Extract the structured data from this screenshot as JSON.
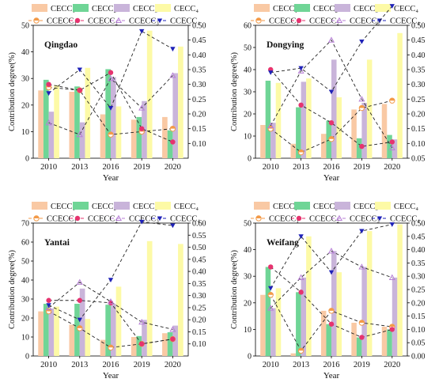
{
  "legend": {
    "bars": [
      "CECC₁",
      "CECC₂",
      "CECC₃",
      "CECC₄"
    ],
    "lines": [
      "CCECC₁",
      "CCECC₂",
      "CCECC₃",
      "CCECC₄"
    ]
  },
  "colors": {
    "bars": [
      "#F9C9A4",
      "#6FD596",
      "#C9B4DA",
      "#FDFAA6"
    ],
    "lines": [
      "#F39A48",
      "#E6336F",
      "#B77FD6",
      "#1F22B8"
    ]
  },
  "chart_data": [
    {
      "type": "bar",
      "title": "Qingdao",
      "categories": [
        "2010",
        "2013",
        "2016",
        "2019",
        "2020"
      ],
      "xlabel": "Year",
      "ylabel": "Contribution degree(%)",
      "ylim": [
        0,
        50
      ],
      "yticks": [
        0,
        10,
        20,
        30,
        40,
        50
      ],
      "y2lim": [
        0.05,
        0.5
      ],
      "y2ticks": [
        0.1,
        0.15,
        0.2,
        0.25,
        0.3,
        0.35,
        0.4,
        0.45,
        0.5
      ],
      "series": [
        {
          "name": "CECC₁",
          "values": [
            25.5,
            25,
            16.5,
            14.5,
            15.5
          ]
        },
        {
          "name": "CECC₂",
          "values": [
            29.5,
            27,
            33.5,
            15.5,
            10.5
          ]
        },
        {
          "name": "CECC₃",
          "values": [
            17.5,
            13.5,
            30.5,
            21.5,
            32
          ]
        },
        {
          "name": "CECC₄",
          "values": [
            27.5,
            34,
            19.5,
            48,
            42
          ]
        }
      ],
      "line_series": [
        {
          "name": "CCECC₁",
          "values": [
            0.29,
            0.28,
            0.13,
            0.14,
            0.15
          ]
        },
        {
          "name": "CCECC₂",
          "values": [
            0.3,
            0.28,
            0.34,
            0.15,
            0.105
          ]
        },
        {
          "name": "CCECC₃",
          "values": [
            0.17,
            0.13,
            0.32,
            0.22,
            0.33
          ]
        },
        {
          "name": "CCECC₄",
          "values": [
            0.27,
            0.35,
            0.22,
            0.48,
            0.42
          ]
        }
      ]
    },
    {
      "type": "bar",
      "title": "Dongying",
      "categories": [
        "2010",
        "2013",
        "2016",
        "2019",
        "2020"
      ],
      "xlabel": "Year",
      "ylabel": "Contribution degree(%)",
      "ylim": [
        0,
        60
      ],
      "yticks": [
        0,
        10,
        20,
        30,
        40,
        50,
        60
      ],
      "y2lim": [
        0.05,
        0.5
      ],
      "y2ticks": [
        0.05,
        0.1,
        0.15,
        0.2,
        0.25,
        0.3,
        0.35,
        0.4,
        0.45,
        0.5
      ],
      "series": [
        {
          "name": "CECC₁",
          "values": [
            15,
            6.5,
            11,
            22,
            24.5
          ]
        },
        {
          "name": "CECC₂",
          "values": [
            35,
            23,
            17,
            9,
            10.5
          ]
        },
        {
          "name": "CECC₃",
          "values": [
            16,
            34.5,
            44.5,
            25,
            8.5
          ]
        },
        {
          "name": "CECC₄",
          "values": [
            34,
            36,
            27.5,
            44.5,
            56.5
          ]
        }
      ],
      "line_series": [
        {
          "name": "CCECC₁",
          "values": [
            0.15,
            0.07,
            0.115,
            0.22,
            0.245
          ]
        },
        {
          "name": "CCECC₂",
          "values": [
            0.35,
            0.23,
            0.17,
            0.09,
            0.105
          ]
        },
        {
          "name": "CCECC₃",
          "values": [
            0.16,
            0.345,
            0.45,
            0.25,
            0.085
          ]
        },
        {
          "name": "CCECC₄",
          "values": [
            0.34,
            0.355,
            0.275,
            0.445,
            0.565
          ]
        }
      ]
    },
    {
      "type": "bar",
      "title": "Yantai",
      "categories": [
        "2010",
        "2013",
        "2016",
        "2019",
        "2020"
      ],
      "xlabel": "Year",
      "ylabel": "Contribution degree(%)",
      "ylim": [
        0,
        70
      ],
      "yticks": [
        0,
        10,
        20,
        30,
        40,
        50,
        60,
        70
      ],
      "y2lim": [
        0.05,
        0.6
      ],
      "y2ticks": [
        0.1,
        0.15,
        0.2,
        0.25,
        0.3,
        0.35,
        0.4,
        0.45,
        0.5,
        0.55,
        0.6
      ],
      "series": [
        {
          "name": "CECC₁",
          "values": [
            23.5,
            16.5,
            8.5,
            10,
            12
          ]
        },
        {
          "name": "CECC₂",
          "values": [
            27.5,
            27.5,
            27,
            10.5,
            12.5
          ]
        },
        {
          "name": "CECC₃",
          "values": [
            25,
            35.5,
            27.5,
            19,
            16
          ]
        },
        {
          "name": "CECC₄",
          "values": [
            26,
            19.5,
            36.5,
            60.5,
            59
          ]
        }
      ],
      "line_series": [
        {
          "name": "CCECC₁",
          "values": [
            0.235,
            0.165,
            0.085,
            0.1,
            0.12
          ]
        },
        {
          "name": "CCECC₂",
          "values": [
            0.28,
            0.28,
            0.27,
            0.1,
            0.12
          ]
        },
        {
          "name": "CCECC₃",
          "values": [
            0.25,
            0.355,
            0.275,
            0.19,
            0.16
          ]
        },
        {
          "name": "CCECC₄",
          "values": [
            0.26,
            0.2,
            0.365,
            0.605,
            0.59
          ]
        }
      ]
    },
    {
      "type": "bar",
      "title": "Weifang",
      "categories": [
        "2010",
        "2013",
        "2016",
        "2019",
        "2020"
      ],
      "xlabel": "Year",
      "ylabel": "Contribution degree(%)",
      "ylim": [
        0,
        50
      ],
      "yticks": [
        0,
        10,
        20,
        30,
        40,
        50
      ],
      "y2lim": [
        0,
        0.5
      ],
      "y2ticks": [
        0.0,
        0.05,
        0.1,
        0.15,
        0.2,
        0.25,
        0.3,
        0.35,
        0.4,
        0.45,
        0.5
      ],
      "series": [
        {
          "name": "CECC₁",
          "values": [
            23,
            1,
            17,
            12.5,
            11
          ]
        },
        {
          "name": "CECC₂",
          "values": [
            33.5,
            24,
            12,
            7,
            10
          ]
        },
        {
          "name": "CECC₃",
          "values": [
            18,
            29.5,
            39.5,
            33.5,
            29.5
          ]
        },
        {
          "name": "CECC₄",
          "values": [
            25.5,
            45,
            31.5,
            47,
            49.5
          ]
        }
      ],
      "line_series": [
        {
          "name": "CCECC₁",
          "values": [
            0.23,
            0.02,
            0.17,
            0.125,
            0.11
          ]
        },
        {
          "name": "CCECC₂",
          "values": [
            0.335,
            0.24,
            0.12,
            0.07,
            0.1
          ]
        },
        {
          "name": "CCECC₃",
          "values": [
            0.18,
            0.295,
            0.395,
            0.335,
            0.295
          ]
        },
        {
          "name": "CCECC₄",
          "values": [
            0.255,
            0.45,
            0.315,
            0.47,
            0.495
          ]
        }
      ]
    }
  ]
}
